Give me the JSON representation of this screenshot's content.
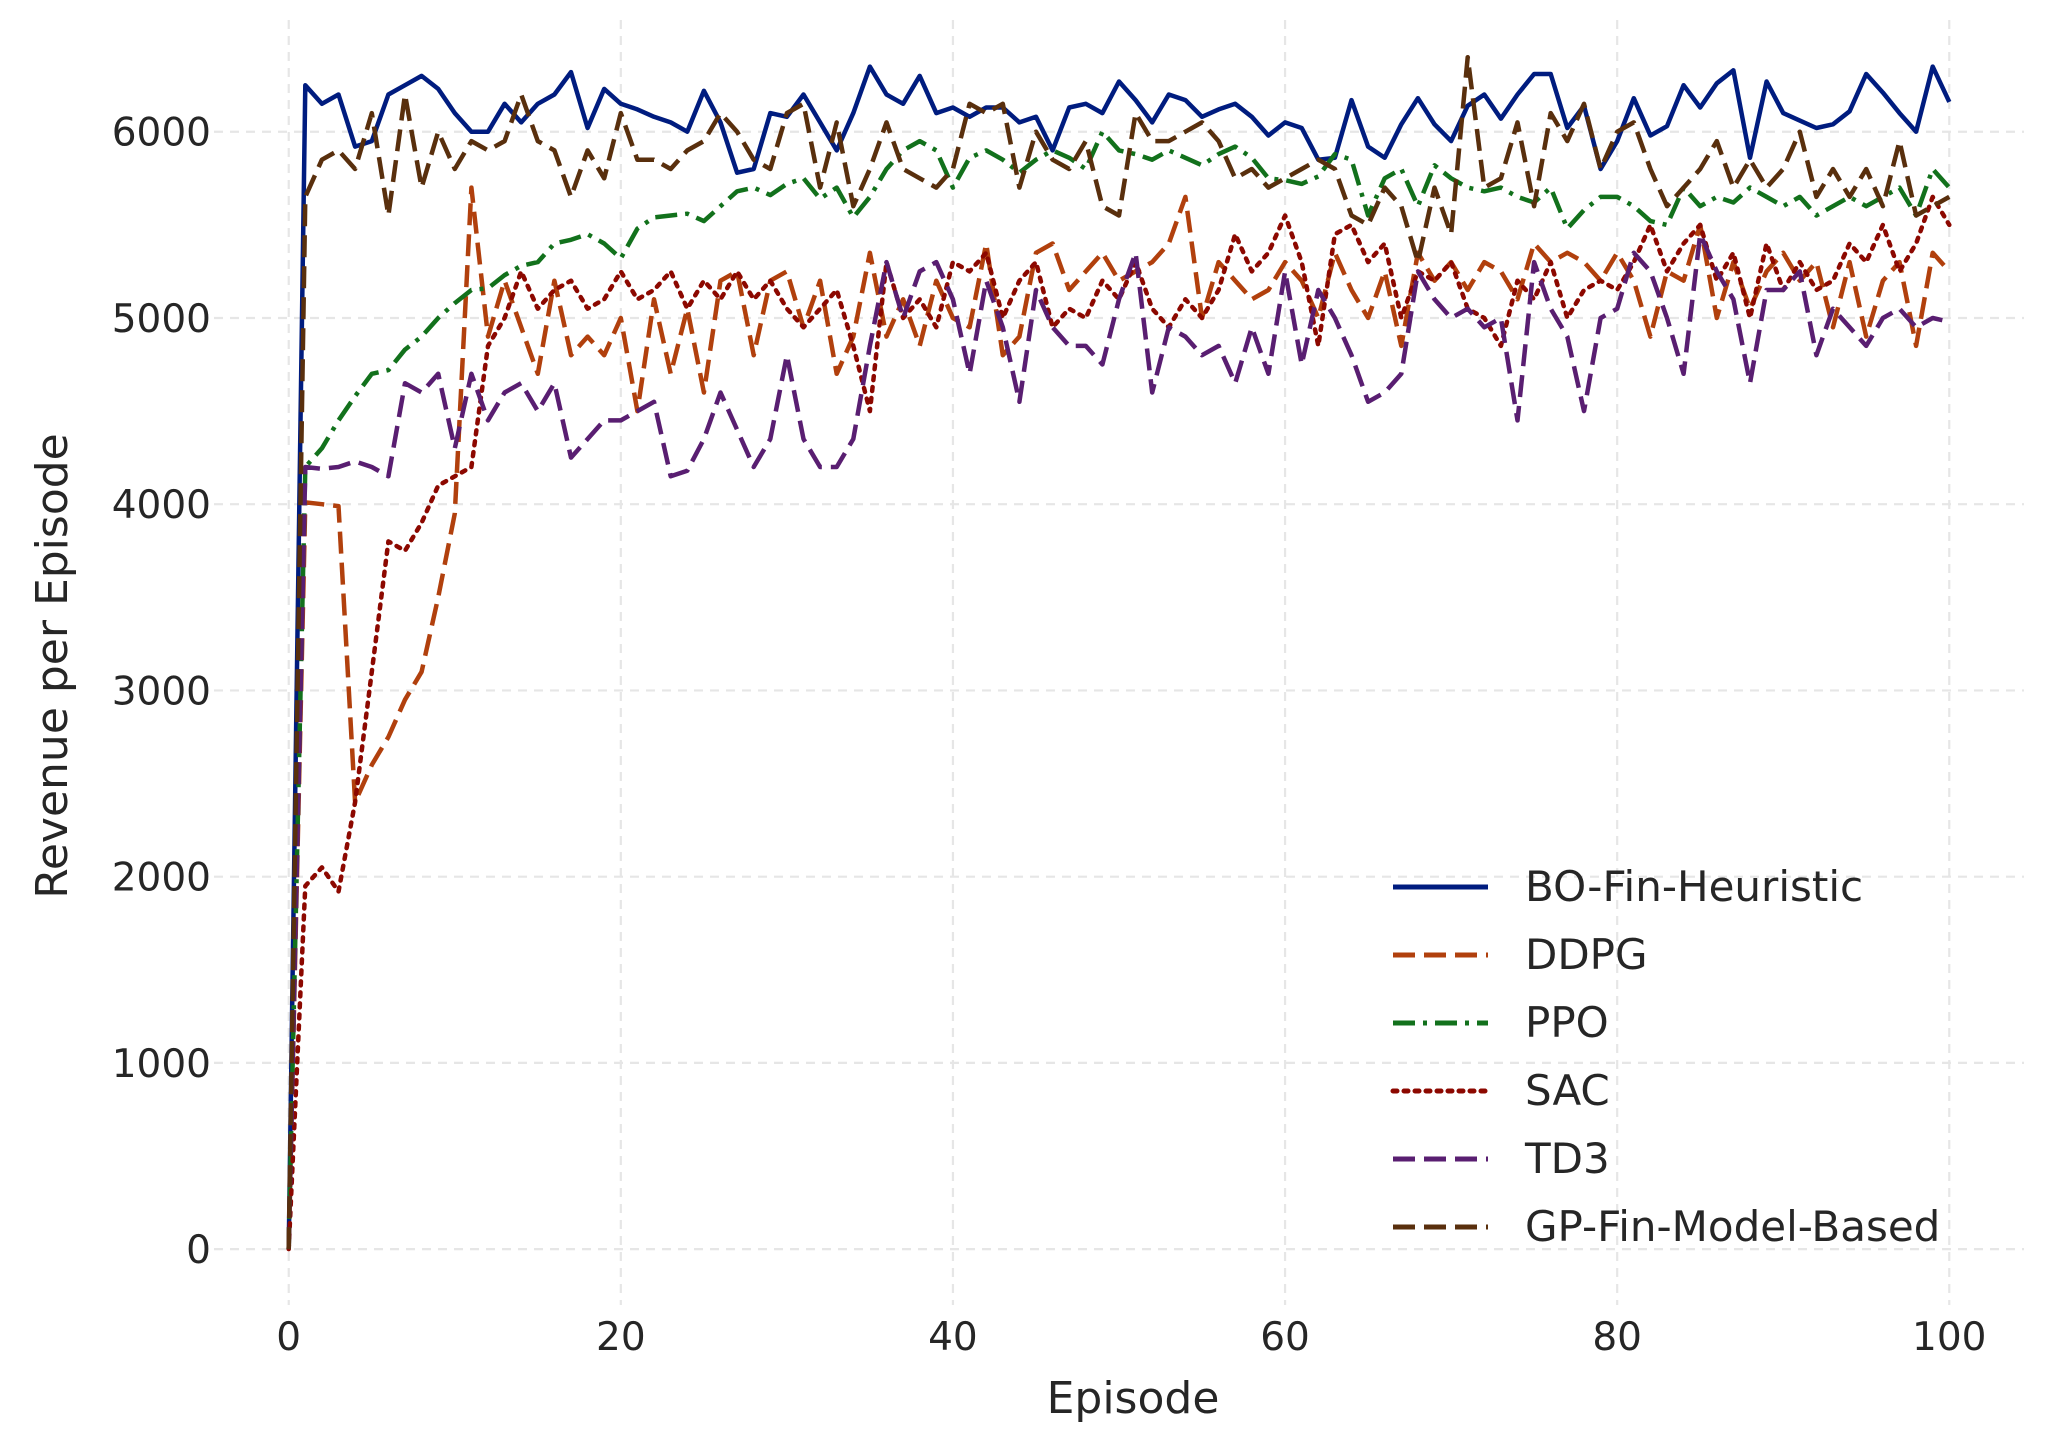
{
  "chart_data": {
    "type": "line",
    "title": "",
    "xlabel": "Episode",
    "ylabel": "Revenue per Episode",
    "xlim": [
      -4.5,
      104.5
    ],
    "ylim": [
      -300,
      6600
    ],
    "xticks": [
      0,
      20,
      40,
      60,
      80,
      100
    ],
    "yticks": [
      0,
      1000,
      2000,
      3000,
      4000,
      5000,
      6000
    ],
    "grid": true,
    "legend_position": "bottom-right",
    "series": [
      {
        "name": "BO-Fin-Heuristic",
        "color": "#001c7f",
        "dash": "solid",
        "values": [
          0,
          6250,
          6150,
          6200,
          5920,
          5950,
          6200,
          6250,
          6300,
          6230,
          6100,
          6000,
          6000,
          6150,
          6050,
          6150,
          6200,
          6320,
          6020,
          6230,
          6150,
          6120,
          6080,
          6050,
          6000,
          6220,
          6050,
          5780,
          5800,
          6100,
          6080,
          6200,
          6050,
          5900,
          6100,
          6350,
          6200,
          6150,
          6300,
          6100,
          6130,
          6080,
          6130,
          6130,
          6050,
          6080,
          5900,
          6130,
          6150,
          6100,
          6270,
          6170,
          6050,
          6200,
          6170,
          6080,
          6120,
          6150,
          6080,
          5980,
          6050,
          6020,
          5850,
          5860,
          6170,
          5920,
          5860,
          6040,
          6180,
          6040,
          5950,
          6140,
          6200,
          6070,
          6200,
          6310,
          6310,
          6020,
          6140,
          5800,
          5950,
          6180,
          5980,
          6030,
          6250,
          6130,
          6260,
          6330,
          5860,
          6270,
          6100,
          6060,
          6020,
          6040,
          6110,
          6310,
          6210,
          6100,
          6000,
          6350,
          6160
        ]
      },
      {
        "name": "DDPG",
        "color": "#b1400d",
        "dash": "dashed",
        "values": [
          0,
          4010,
          4000,
          3990,
          2400,
          2600,
          2750,
          2950,
          3100,
          3500,
          3950,
          5700,
          4900,
          5200,
          4950,
          4700,
          5200,
          4800,
          4900,
          4800,
          5000,
          4500,
          5100,
          4700,
          5050,
          4600,
          5200,
          5250,
          4800,
          5200,
          5250,
          4950,
          5200,
          4700,
          4900,
          5350,
          4900,
          5100,
          4850,
          5200,
          5000,
          4950,
          5400,
          4800,
          4900,
          5350,
          5400,
          5150,
          5250,
          5350,
          5200,
          5250,
          5300,
          5400,
          5650,
          5000,
          5300,
          5200,
          5100,
          5150,
          5300,
          5200,
          5000,
          5350,
          5150,
          5000,
          5250,
          4850,
          5350,
          5200,
          5300,
          5150,
          5300,
          5250,
          5100,
          5400,
          5300,
          5350,
          5300,
          5200,
          5350,
          5200,
          4900,
          5250,
          5200,
          5500,
          5000,
          5300,
          5050,
          5250,
          5350,
          5200,
          5300,
          4950,
          5300,
          4900,
          5200,
          5300,
          4850,
          5350,
          5250
        ]
      },
      {
        "name": "PPO",
        "color": "#12711c",
        "dash": "dashdot",
        "values": [
          0,
          4200,
          4300,
          4450,
          4580,
          4700,
          4720,
          4830,
          4900,
          5000,
          5080,
          5150,
          5160,
          5230,
          5280,
          5300,
          5400,
          5420,
          5450,
          5400,
          5320,
          5480,
          5540,
          5550,
          5560,
          5520,
          5600,
          5680,
          5700,
          5660,
          5720,
          5750,
          5640,
          5700,
          5540,
          5650,
          5800,
          5900,
          5950,
          5900,
          5700,
          5860,
          5900,
          5850,
          5780,
          5850,
          5900,
          5860,
          5800,
          6000,
          5900,
          5880,
          5850,
          5900,
          5860,
          5820,
          5880,
          5920,
          5860,
          5750,
          5740,
          5720,
          5760,
          5880,
          5850,
          5550,
          5750,
          5800,
          5600,
          5820,
          5750,
          5700,
          5680,
          5700,
          5650,
          5620,
          5700,
          5480,
          5580,
          5650,
          5650,
          5600,
          5520,
          5500,
          5700,
          5600,
          5650,
          5620,
          5700,
          5650,
          5600,
          5650,
          5550,
          5600,
          5650,
          5600,
          5650,
          5700,
          5550,
          5800,
          5700
        ]
      },
      {
        "name": "SAC",
        "color": "#8c0800",
        "dash": "dotted",
        "values": [
          0,
          1950,
          2050,
          1920,
          2400,
          3100,
          3800,
          3750,
          3900,
          4100,
          4150,
          4200,
          4850,
          5000,
          5250,
          5050,
          5150,
          5200,
          5050,
          5100,
          5250,
          5100,
          5150,
          5250,
          5050,
          5200,
          5100,
          5250,
          5100,
          5200,
          5050,
          4950,
          5050,
          5150,
          4850,
          4500,
          5300,
          5000,
          5100,
          4950,
          5300,
          5250,
          5350,
          5000,
          5200,
          5300,
          4950,
          5050,
          5000,
          5200,
          5100,
          5300,
          5050,
          4950,
          5100,
          5000,
          5150,
          5450,
          5250,
          5350,
          5550,
          5300,
          4850,
          5450,
          5500,
          5300,
          5400,
          5000,
          5250,
          5200,
          5300,
          5050,
          5000,
          4850,
          5200,
          5100,
          5300,
          5000,
          5150,
          5200,
          5150,
          5300,
          5500,
          5250,
          5400,
          5500,
          5200,
          5350,
          5000,
          5400,
          5150,
          5300,
          5150,
          5200,
          5400,
          5300,
          5500,
          5250,
          5400,
          5650,
          5500
        ]
      },
      {
        "name": "TD3",
        "color": "#591e71",
        "dash": "dashed",
        "values": [
          0,
          4200,
          4190,
          4200,
          4230,
          4200,
          4150,
          4650,
          4600,
          4700,
          4300,
          4700,
          4450,
          4600,
          4650,
          4500,
          4650,
          4250,
          4350,
          4450,
          4450,
          4500,
          4550,
          4150,
          4180,
          4350,
          4600,
          4400,
          4200,
          4350,
          4800,
          4350,
          4200,
          4200,
          4350,
          4850,
          5300,
          5000,
          5250,
          5300,
          5100,
          4700,
          5200,
          4950,
          4550,
          5150,
          4950,
          4850,
          4850,
          4750,
          5100,
          5350,
          4600,
          4950,
          4900,
          4800,
          4850,
          4650,
          4950,
          4700,
          5250,
          4750,
          5150,
          5000,
          4800,
          4550,
          4600,
          4700,
          5250,
          5100,
          5000,
          5050,
          4950,
          5000,
          4450,
          5300,
          5050,
          4900,
          4500,
          5000,
          5050,
          5350,
          5250,
          5000,
          4700,
          5450,
          5250,
          5100,
          4650,
          5150,
          5150,
          5250,
          4800,
          5050,
          4950,
          4850,
          5000,
          5050,
          4950,
          5000,
          4980
        ]
      },
      {
        "name": "GP-Fin-Model-Based",
        "color": "#592f0d",
        "dash": "dashed",
        "values": [
          0,
          5650,
          5850,
          5900,
          5800,
          6100,
          5550,
          6200,
          5700,
          6000,
          5800,
          5950,
          5900,
          5950,
          6200,
          5950,
          5900,
          5650,
          5900,
          5750,
          6100,
          5850,
          5850,
          5800,
          5900,
          5950,
          6100,
          6000,
          5850,
          5800,
          6100,
          6150,
          5700,
          6050,
          5600,
          5800,
          6050,
          5800,
          5750,
          5700,
          5800,
          6150,
          6100,
          6150,
          5700,
          6000,
          5850,
          5800,
          5950,
          5600,
          5550,
          6100,
          5950,
          5950,
          6000,
          6050,
          5950,
          5750,
          5800,
          5700,
          5750,
          5800,
          5850,
          5800,
          5550,
          5500,
          5700,
          5600,
          5300,
          5700,
          5450,
          6400,
          5700,
          5750,
          6050,
          5600,
          6100,
          5950,
          6150,
          5800,
          6000,
          6050,
          5800,
          5600,
          5700,
          5800,
          5950,
          5700,
          5850,
          5700,
          5800,
          6000,
          5650,
          5800,
          5650,
          5800,
          5600,
          5950,
          5550,
          5600,
          5650
        ]
      }
    ]
  }
}
